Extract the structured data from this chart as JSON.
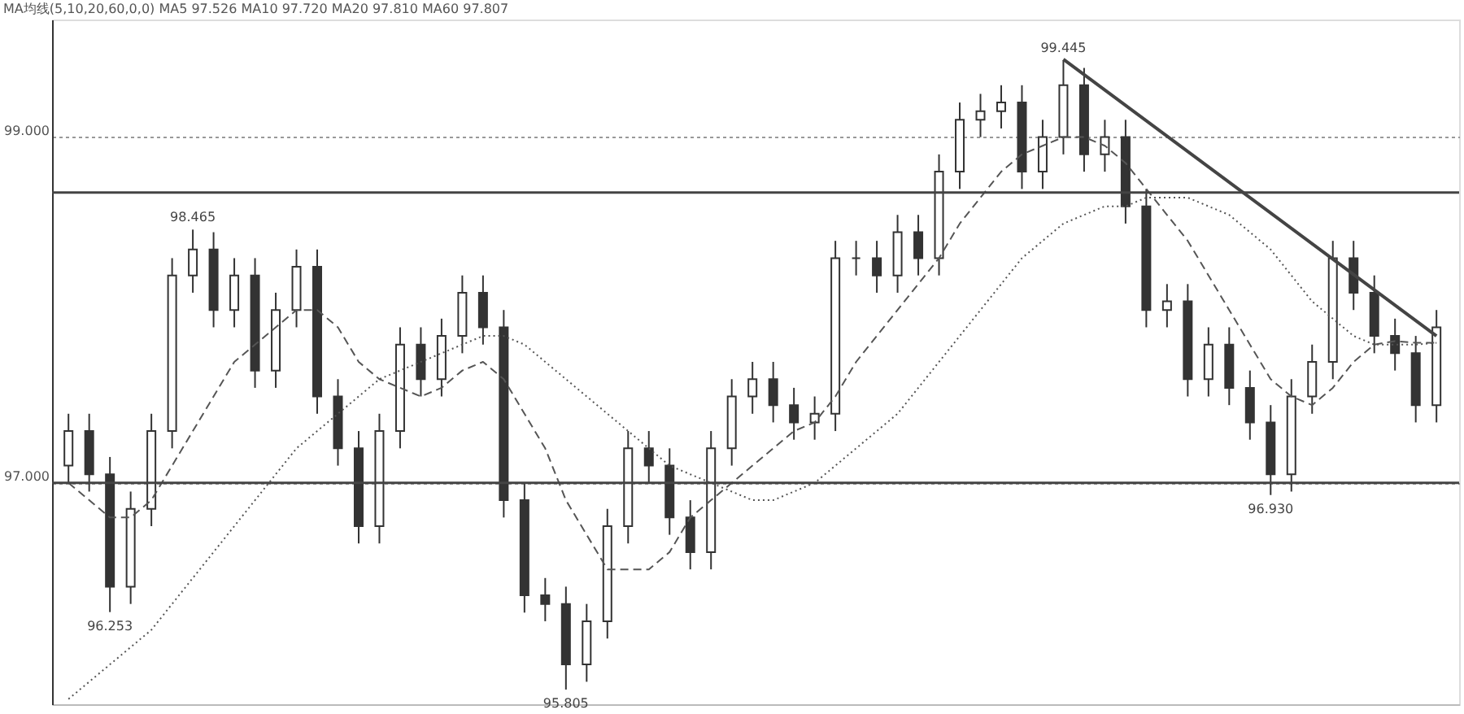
{
  "chart_data": {
    "type": "candlestick",
    "title": "MA均线(5,10,20,60,0,0) MA5 97.526 MA10 97.720 MA20 97.810 MA60 97.807",
    "categories": [
      null,
      null,
      null,
      null,
      null,
      null,
      null,
      null,
      null,
      null,
      null,
      null,
      null,
      null,
      null,
      null,
      null,
      null,
      null,
      null,
      null,
      null,
      null,
      null,
      null,
      null,
      null,
      null,
      null,
      null,
      null,
      null,
      null,
      null,
      null,
      null,
      null,
      null,
      null,
      null,
      null,
      null,
      null,
      null,
      null,
      null,
      null,
      null,
      null,
      null,
      null,
      null,
      null,
      null,
      null,
      null,
      null,
      null,
      null,
      null,
      null,
      null,
      null,
      null,
      null,
      null,
      null
    ],
    "ohlc": [
      [
        97.1,
        97.4,
        97.0,
        97.3
      ],
      [
        97.3,
        97.4,
        96.95,
        97.05
      ],
      [
        97.05,
        97.15,
        96.253,
        96.4
      ],
      [
        96.4,
        96.95,
        96.3,
        96.85
      ],
      [
        96.85,
        97.4,
        96.75,
        97.3
      ],
      [
        97.3,
        98.3,
        97.2,
        98.2
      ],
      [
        98.2,
        98.465,
        98.1,
        98.35
      ],
      [
        98.35,
        98.45,
        97.9,
        98.0
      ],
      [
        98.0,
        98.3,
        97.9,
        98.2
      ],
      [
        98.2,
        98.3,
        97.55,
        97.65
      ],
      [
        97.65,
        98.1,
        97.55,
        98.0
      ],
      [
        98.0,
        98.35,
        97.9,
        98.25
      ],
      [
        98.25,
        98.35,
        97.4,
        97.5
      ],
      [
        97.5,
        97.6,
        97.1,
        97.2
      ],
      [
        97.2,
        97.3,
        96.65,
        96.75
      ],
      [
        96.75,
        97.4,
        96.65,
        97.3
      ],
      [
        97.3,
        97.9,
        97.2,
        97.8
      ],
      [
        97.8,
        97.9,
        97.5,
        97.6
      ],
      [
        97.6,
        97.95,
        97.5,
        97.85
      ],
      [
        97.85,
        98.2,
        97.75,
        98.1
      ],
      [
        98.1,
        98.2,
        97.8,
        97.9
      ],
      [
        97.9,
        98.0,
        96.8,
        96.9
      ],
      [
        96.9,
        97.0,
        96.25,
        96.35
      ],
      [
        96.35,
        96.45,
        96.2,
        96.3
      ],
      [
        96.3,
        96.4,
        95.805,
        95.95
      ],
      [
        95.95,
        96.3,
        95.85,
        96.2
      ],
      [
        96.2,
        96.85,
        96.1,
        96.75
      ],
      [
        96.75,
        97.3,
        96.65,
        97.2
      ],
      [
        97.2,
        97.3,
        97.0,
        97.1
      ],
      [
        97.1,
        97.2,
        96.7,
        96.8
      ],
      [
        96.8,
        96.9,
        96.5,
        96.6
      ],
      [
        96.6,
        97.3,
        96.5,
        97.2
      ],
      [
        97.2,
        97.6,
        97.1,
        97.5
      ],
      [
        97.5,
        97.7,
        97.4,
        97.6
      ],
      [
        97.6,
        97.7,
        97.35,
        97.45
      ],
      [
        97.45,
        97.55,
        97.25,
        97.35
      ],
      [
        97.35,
        97.5,
        97.25,
        97.4
      ],
      [
        97.4,
        98.4,
        97.3,
        98.3
      ],
      [
        98.3,
        98.4,
        98.2,
        98.3
      ],
      [
        98.3,
        98.4,
        98.1,
        98.2
      ],
      [
        98.2,
        98.55,
        98.1,
        98.45
      ],
      [
        98.45,
        98.55,
        98.2,
        98.3
      ],
      [
        98.3,
        98.9,
        98.2,
        98.8
      ],
      [
        98.8,
        99.2,
        98.7,
        99.1
      ],
      [
        99.1,
        99.25,
        99.0,
        99.15
      ],
      [
        99.15,
        99.3,
        99.05,
        99.2
      ],
      [
        99.2,
        99.3,
        98.7,
        98.8
      ],
      [
        98.8,
        99.1,
        98.7,
        99.0
      ],
      [
        99.0,
        99.445,
        98.9,
        99.3
      ],
      [
        99.3,
        99.4,
        98.8,
        98.9
      ],
      [
        98.9,
        99.1,
        98.8,
        99.0
      ],
      [
        99.0,
        99.1,
        98.5,
        98.6
      ],
      [
        98.6,
        98.7,
        97.9,
        98.0
      ],
      [
        98.0,
        98.15,
        97.9,
        98.05
      ],
      [
        98.05,
        98.15,
        97.5,
        97.6
      ],
      [
        97.6,
        97.9,
        97.5,
        97.8
      ],
      [
        97.8,
        97.9,
        97.45,
        97.55
      ],
      [
        97.55,
        97.65,
        97.25,
        97.35
      ],
      [
        97.35,
        97.45,
        96.93,
        97.05
      ],
      [
        97.05,
        97.6,
        96.95,
        97.5
      ],
      [
        97.5,
        97.8,
        97.4,
        97.7
      ],
      [
        97.7,
        98.4,
        97.6,
        98.3
      ],
      [
        98.3,
        98.4,
        98.0,
        98.1
      ],
      [
        98.1,
        98.2,
        97.75,
        97.85
      ],
      [
        97.85,
        97.95,
        97.65,
        97.75
      ],
      [
        97.75,
        97.85,
        97.35,
        97.45
      ],
      [
        97.45,
        98.0,
        97.35,
        97.9
      ]
    ],
    "series": [
      {
        "type": "line",
        "color": "#555555",
        "line_style": "dashed",
        "values": [
          97.0,
          96.9,
          96.8,
          96.8,
          96.9,
          97.1,
          97.3,
          97.5,
          97.7,
          97.8,
          97.9,
          98.0,
          98.0,
          97.9,
          97.7,
          97.6,
          97.55,
          97.5,
          97.55,
          97.65,
          97.7,
          97.6,
          97.4,
          97.2,
          96.9,
          96.7,
          96.5,
          96.5,
          96.5,
          96.6,
          96.8,
          96.9,
          97.0,
          97.1,
          97.2,
          97.3,
          97.35,
          97.5,
          97.7,
          97.85,
          98.0,
          98.15,
          98.3,
          98.5,
          98.65,
          98.8,
          98.9,
          98.95,
          99.0,
          99.0,
          98.95,
          98.85,
          98.7,
          98.55,
          98.4,
          98.2,
          98.0,
          97.8,
          97.6,
          97.5,
          97.45,
          97.55,
          97.7,
          97.8,
          97.82,
          97.81,
          97.81
        ]
      },
      {
        "type": "line",
        "color": "#555555",
        "line_style": "dotted",
        "values": [
          95.75,
          95.85,
          95.95,
          96.05,
          96.15,
          96.3,
          96.45,
          96.6,
          96.75,
          96.9,
          97.05,
          97.2,
          97.3,
          97.4,
          97.5,
          97.6,
          97.65,
          97.7,
          97.75,
          97.8,
          97.85,
          97.85,
          97.8,
          97.7,
          97.6,
          97.5,
          97.4,
          97.3,
          97.2,
          97.1,
          97.05,
          97.0,
          96.95,
          96.9,
          96.9,
          96.95,
          97.0,
          97.1,
          97.2,
          97.3,
          97.4,
          97.55,
          97.7,
          97.85,
          98.0,
          98.15,
          98.3,
          98.4,
          98.5,
          98.55,
          98.6,
          98.6,
          98.65,
          98.65,
          98.65,
          98.6,
          98.55,
          98.45,
          98.35,
          98.2,
          98.05,
          97.95,
          97.85,
          97.8,
          97.8,
          97.8,
          97.81
        ]
      },
      {
        "type": "line",
        "color": "#444444",
        "line_style": "solid",
        "values": [
          null,
          null,
          null,
          null,
          null,
          null,
          null,
          null,
          null,
          null,
          null,
          null,
          null,
          null,
          null,
          null,
          null,
          null,
          null,
          null,
          null,
          null,
          null,
          null,
          null,
          null,
          null,
          null,
          null,
          null,
          null,
          null,
          null,
          null,
          null,
          null,
          null,
          null,
          null,
          null,
          null,
          null,
          null,
          null,
          null,
          null,
          null,
          null,
          99.45,
          null,
          null,
          null,
          null,
          null,
          null,
          null,
          null,
          null,
          null,
          null,
          null,
          null,
          null,
          null,
          null,
          null,
          97.85
        ]
      }
    ],
    "ylim": [
      95.72,
      99.68
    ],
    "yticks": [
      {
        "value": 97,
        "label": "97.000"
      },
      {
        "value": 99,
        "label": "99.000"
      }
    ],
    "grid": "y",
    "tick_labels": "y",
    "ref_lines": [
      {
        "axis": "y",
        "value": 98.68,
        "color": "#444444"
      },
      {
        "axis": "y",
        "value": 97.0,
        "color": "#444444"
      }
    ],
    "annotations": [
      {
        "text": "96.253",
        "y": 96.253
      },
      {
        "text": "98.465",
        "y": 98.465
      },
      {
        "text": "95.805",
        "y": 95.805
      },
      {
        "text": "99.445",
        "y": 99.445
      },
      {
        "text": "96.930",
        "y": 96.93
      }
    ]
  }
}
